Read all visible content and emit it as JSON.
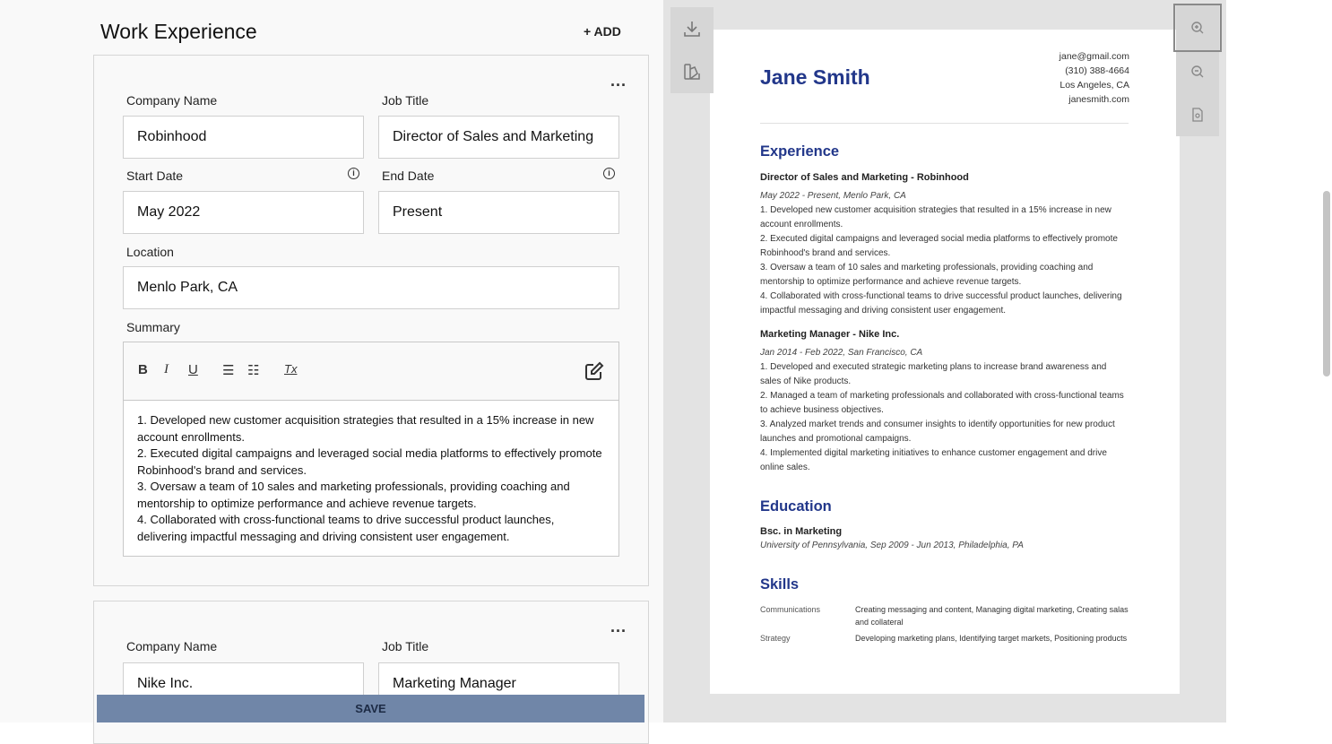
{
  "editor": {
    "title": "Work Experience",
    "add_label": "+ ADD",
    "more_label": "...",
    "labels": {
      "company": "Company Name",
      "job_title": "Job Title",
      "start": "Start Date",
      "end": "End Date",
      "location": "Location",
      "summary": "Summary"
    },
    "info_icon": "i",
    "toolbar": {
      "bold": "B",
      "italic": "I",
      "underline": "U",
      "bullet": "☰",
      "numbered": "☷",
      "clear": "Tx"
    },
    "entries": [
      {
        "company": "Robinhood",
        "job_title": "Director of Sales and Marketing",
        "start": "May 2022",
        "end": "Present",
        "location": "Menlo Park, CA",
        "summary": [
          "1. Developed new customer acquisition strategies that resulted in a 15% increase in new account enrollments.",
          "2. Executed digital campaigns and leveraged social media platforms to effectively promote Robinhood's brand and services.",
          "3. Oversaw a team of 10 sales and marketing professionals, providing coaching and mentorship to optimize performance and achieve revenue targets.",
          "4. Collaborated with cross-functional teams to drive successful product launches, delivering impactful messaging and driving consistent user engagement."
        ]
      },
      {
        "company": "Nike Inc.",
        "job_title": "Marketing Manager"
      }
    ],
    "save_label": "SAVE"
  },
  "resume": {
    "name": "Jane Smith",
    "contact": [
      "jane@gmail.com",
      "(310) 388-4664",
      "Los Angeles, CA",
      "janesmith.com"
    ],
    "experience_heading": "Experience",
    "jobs": [
      {
        "title": "Director of Sales and Marketing - Robinhood",
        "meta": "May 2022 - Present, Menlo Park, CA",
        "bullets": [
          "1. Developed new customer acquisition strategies that resulted in a 15% increase in new account enrollments.",
          "2. Executed digital campaigns and leveraged social media platforms to effectively promote Robinhood's brand and services.",
          "3. Oversaw a team of 10 sales and marketing professionals, providing coaching and mentorship to optimize performance and achieve revenue targets.",
          "4. Collaborated with cross-functional teams to drive successful product launches, delivering impactful messaging and driving consistent user engagement."
        ]
      },
      {
        "title": "Marketing Manager - Nike Inc.",
        "meta": "Jan 2014 - Feb 2022, San Francisco, CA",
        "bullets": [
          "1. Developed and executed strategic marketing plans to increase brand awareness and sales of Nike products.",
          "2. Managed a team of marketing professionals and collaborated with cross-functional teams to achieve business objectives.",
          "3. Analyzed market trends and consumer insights to identify opportunities for new product launches and promotional campaigns.",
          "4. Implemented digital marketing initiatives to enhance customer engagement and drive online sales."
        ]
      }
    ],
    "education_heading": "Education",
    "education": {
      "degree": "Bsc. in Marketing",
      "meta": "University of Pennsylvania, Sep 2009 - Jun 2013, Philadelphia, PA"
    },
    "skills_heading": "Skills",
    "skills": [
      {
        "category": "Communications",
        "items": "Creating messaging and content, Managing digital marketing, Creating salas and collateral"
      },
      {
        "category": "Strategy",
        "items": "Developing marketing plans, Identifying target markets, Positioning products"
      }
    ]
  },
  "colors": {
    "accent": "#22378a",
    "save_button": "#7086a8"
  }
}
